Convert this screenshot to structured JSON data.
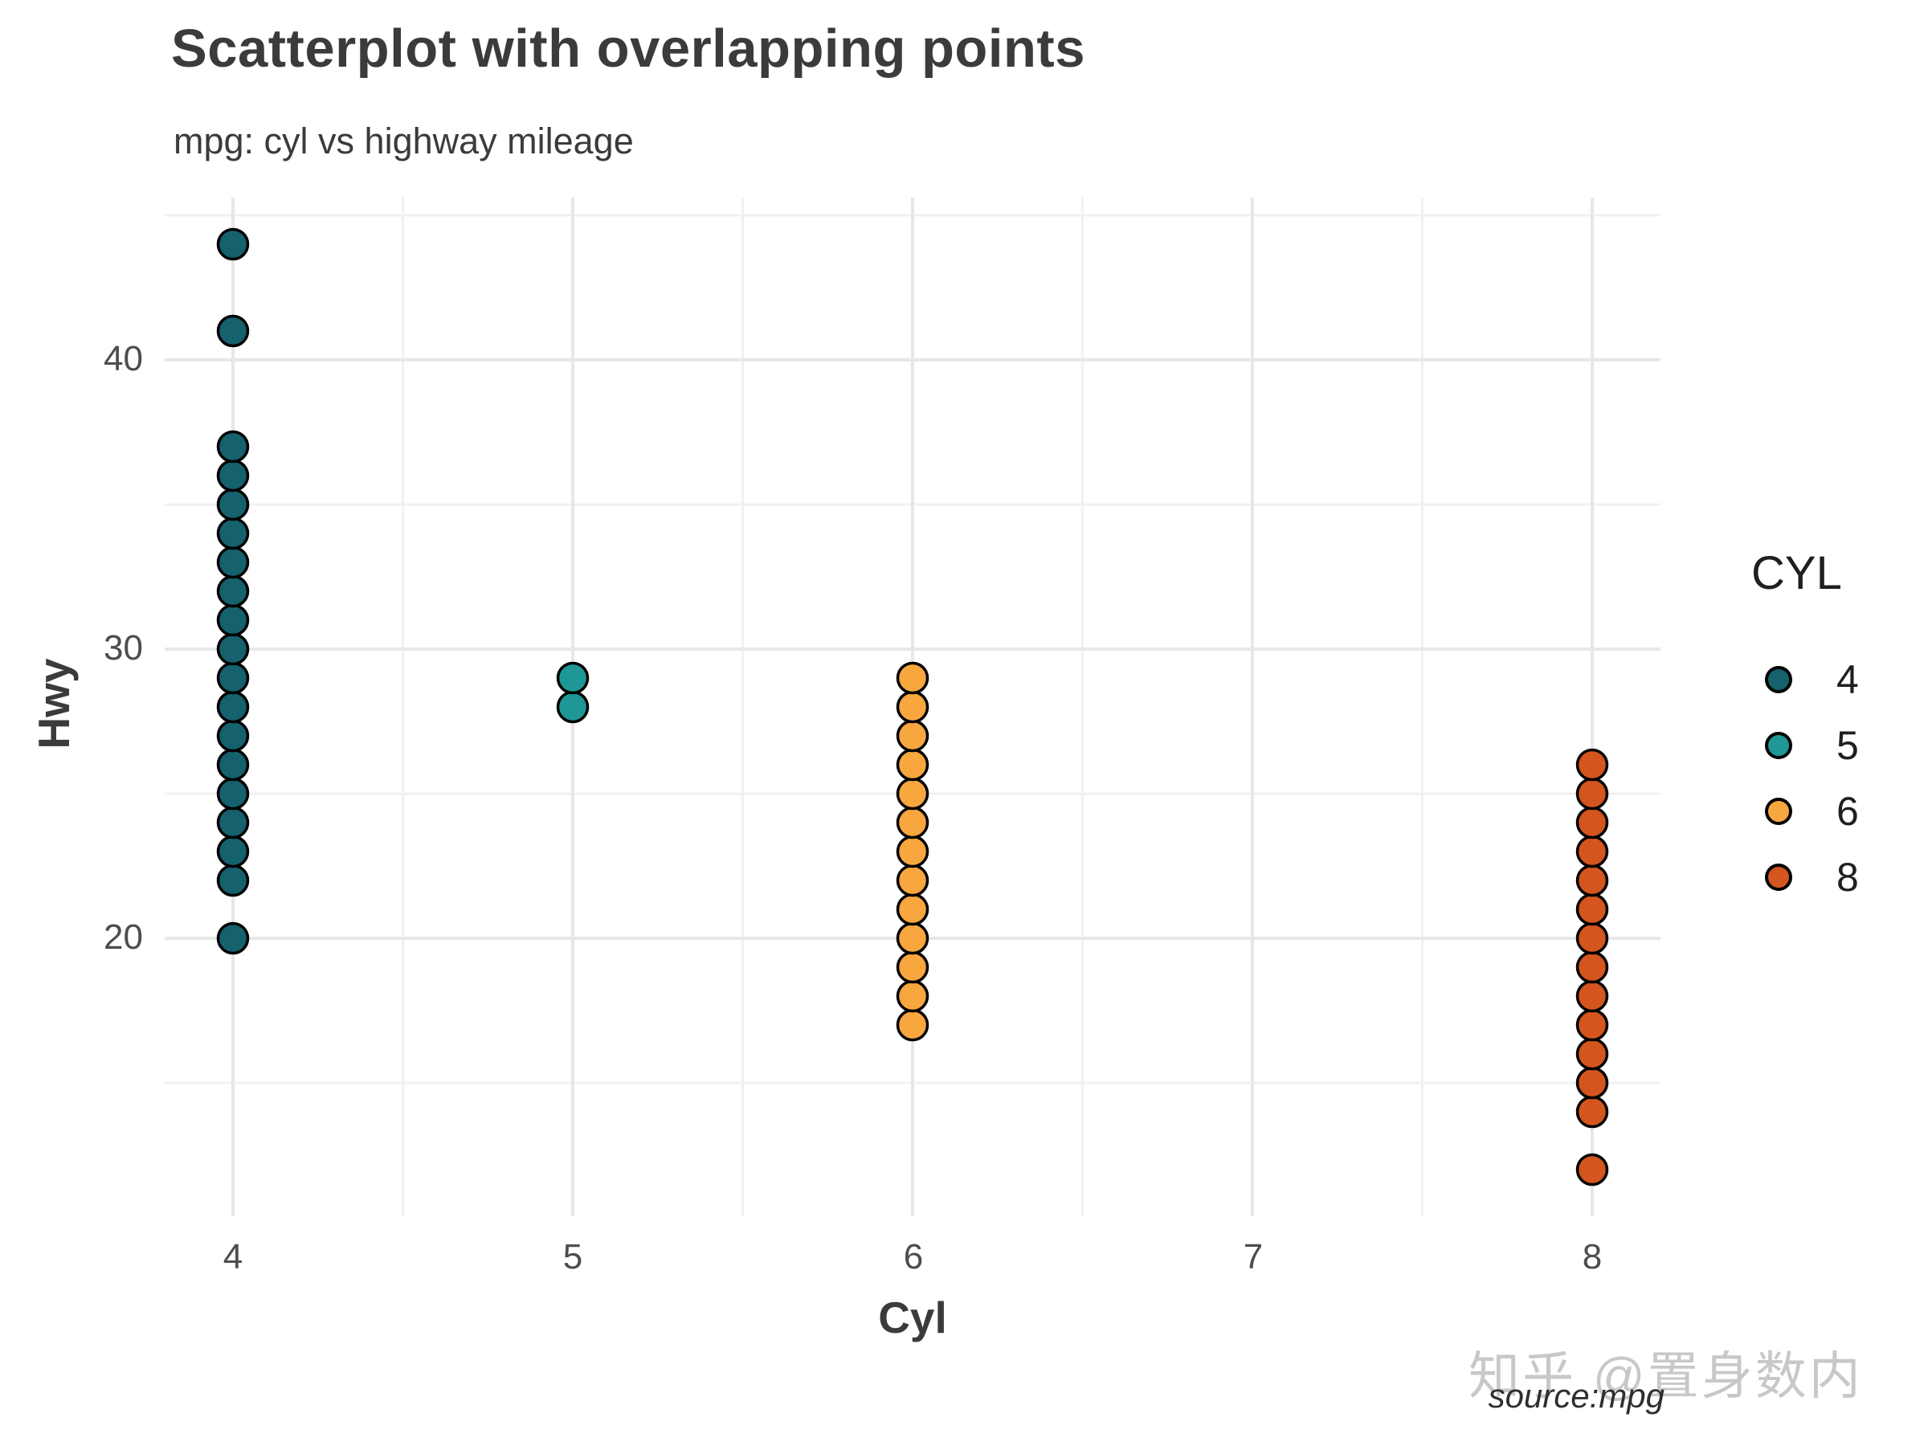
{
  "title": "Scatterplot with overlapping points",
  "subtitle": "mpg: cyl vs highway mileage",
  "caption": "source:mpg",
  "watermark": "知乎 @置身数内",
  "axes": {
    "x_title": "Cyl",
    "y_title": "Hwy",
    "x_tick_labels": [
      "4",
      "5",
      "6",
      "7",
      "8"
    ],
    "y_tick_labels": [
      "20",
      "30",
      "40"
    ]
  },
  "legend": {
    "title": "CYL",
    "entries": [
      {
        "label": "4",
        "color": "#15616D"
      },
      {
        "label": "5",
        "color": "#1E9796"
      },
      {
        "label": "6",
        "color": "#F8A63E"
      },
      {
        "label": "8",
        "color": "#D4551D"
      }
    ]
  },
  "colors": {
    "major_grid": "#e7e7e7",
    "minor_grid": "#f1f1f1",
    "point_stroke": "#000000",
    "background": "#ffffff"
  },
  "chart_data": {
    "type": "scatter",
    "title": "Scatterplot with overlapping points",
    "subtitle": "mpg: cyl vs highway mileage",
    "caption": "source:mpg",
    "xlabel": "Cyl",
    "ylabel": "Hwy",
    "x_ticks": [
      4,
      5,
      6,
      7,
      8
    ],
    "y_ticks": [
      20,
      30,
      40
    ],
    "x_minor_ticks": [
      4.5,
      5.5,
      6.5,
      7.5
    ],
    "y_minor_ticks": [
      15,
      25,
      35,
      45
    ],
    "xlim": [
      3.8,
      8.2
    ],
    "ylim": [
      10.4,
      45.6
    ],
    "grid": "major and minor, light gray, no axis lines (theme_minimal)",
    "legend_position": "right",
    "point_shape": "filled circle with black outline",
    "series": [
      {
        "name": "4",
        "color": "#15616D",
        "x": 4,
        "hwy_values": [
          20,
          22,
          23,
          24,
          25,
          26,
          27,
          28,
          29,
          30,
          31,
          32,
          33,
          34,
          35,
          36,
          37,
          41,
          44
        ]
      },
      {
        "name": "5",
        "color": "#1E9796",
        "x": 5,
        "hwy_values": [
          28,
          29
        ]
      },
      {
        "name": "6",
        "color": "#F8A63E",
        "x": 6,
        "hwy_values": [
          17,
          18,
          19,
          20,
          21,
          22,
          23,
          24,
          25,
          26,
          27,
          28,
          29
        ]
      },
      {
        "name": "8",
        "color": "#D4551D",
        "x": 8,
        "hwy_values": [
          12,
          14,
          15,
          16,
          17,
          18,
          19,
          20,
          21,
          22,
          23,
          24,
          25,
          26
        ]
      }
    ]
  }
}
